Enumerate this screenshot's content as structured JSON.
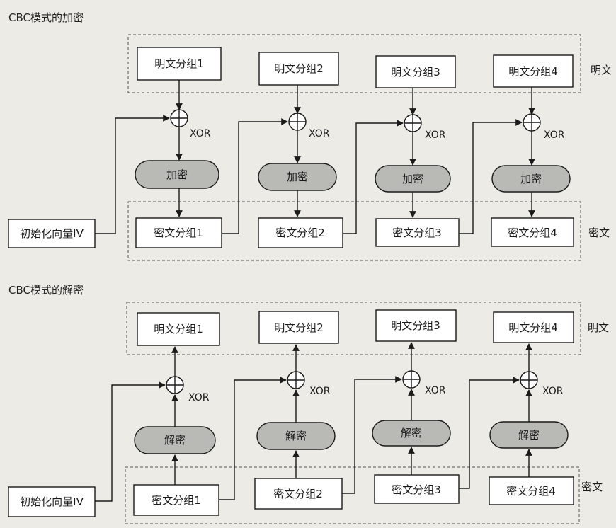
{
  "encryption": {
    "title": "CBC模式的加密",
    "group_plaintext_label": "明文",
    "group_ciphertext_label": "密文",
    "iv_label": "初始化向量IV",
    "xor_label": "XOR",
    "op_label": "加密",
    "plaintext_blocks": [
      "明文分组1",
      "明文分组2",
      "明文分组3",
      "明文分组4"
    ],
    "ciphertext_blocks": [
      "密文分组1",
      "密文分组2",
      "密文分组3",
      "密文分组4"
    ]
  },
  "decryption": {
    "title": "CBC模式的解密",
    "group_plaintext_label": "明文",
    "group_ciphertext_label": "密文",
    "iv_label": "初始化向量IV",
    "xor_label": "XOR",
    "op_label": "解密",
    "plaintext_blocks": [
      "明文分组1",
      "明文分组2",
      "明文分组3",
      "明文分组4"
    ],
    "ciphertext_blocks": [
      "密文分组1",
      "密文分组2",
      "密文分组3",
      "密文分组4"
    ]
  }
}
